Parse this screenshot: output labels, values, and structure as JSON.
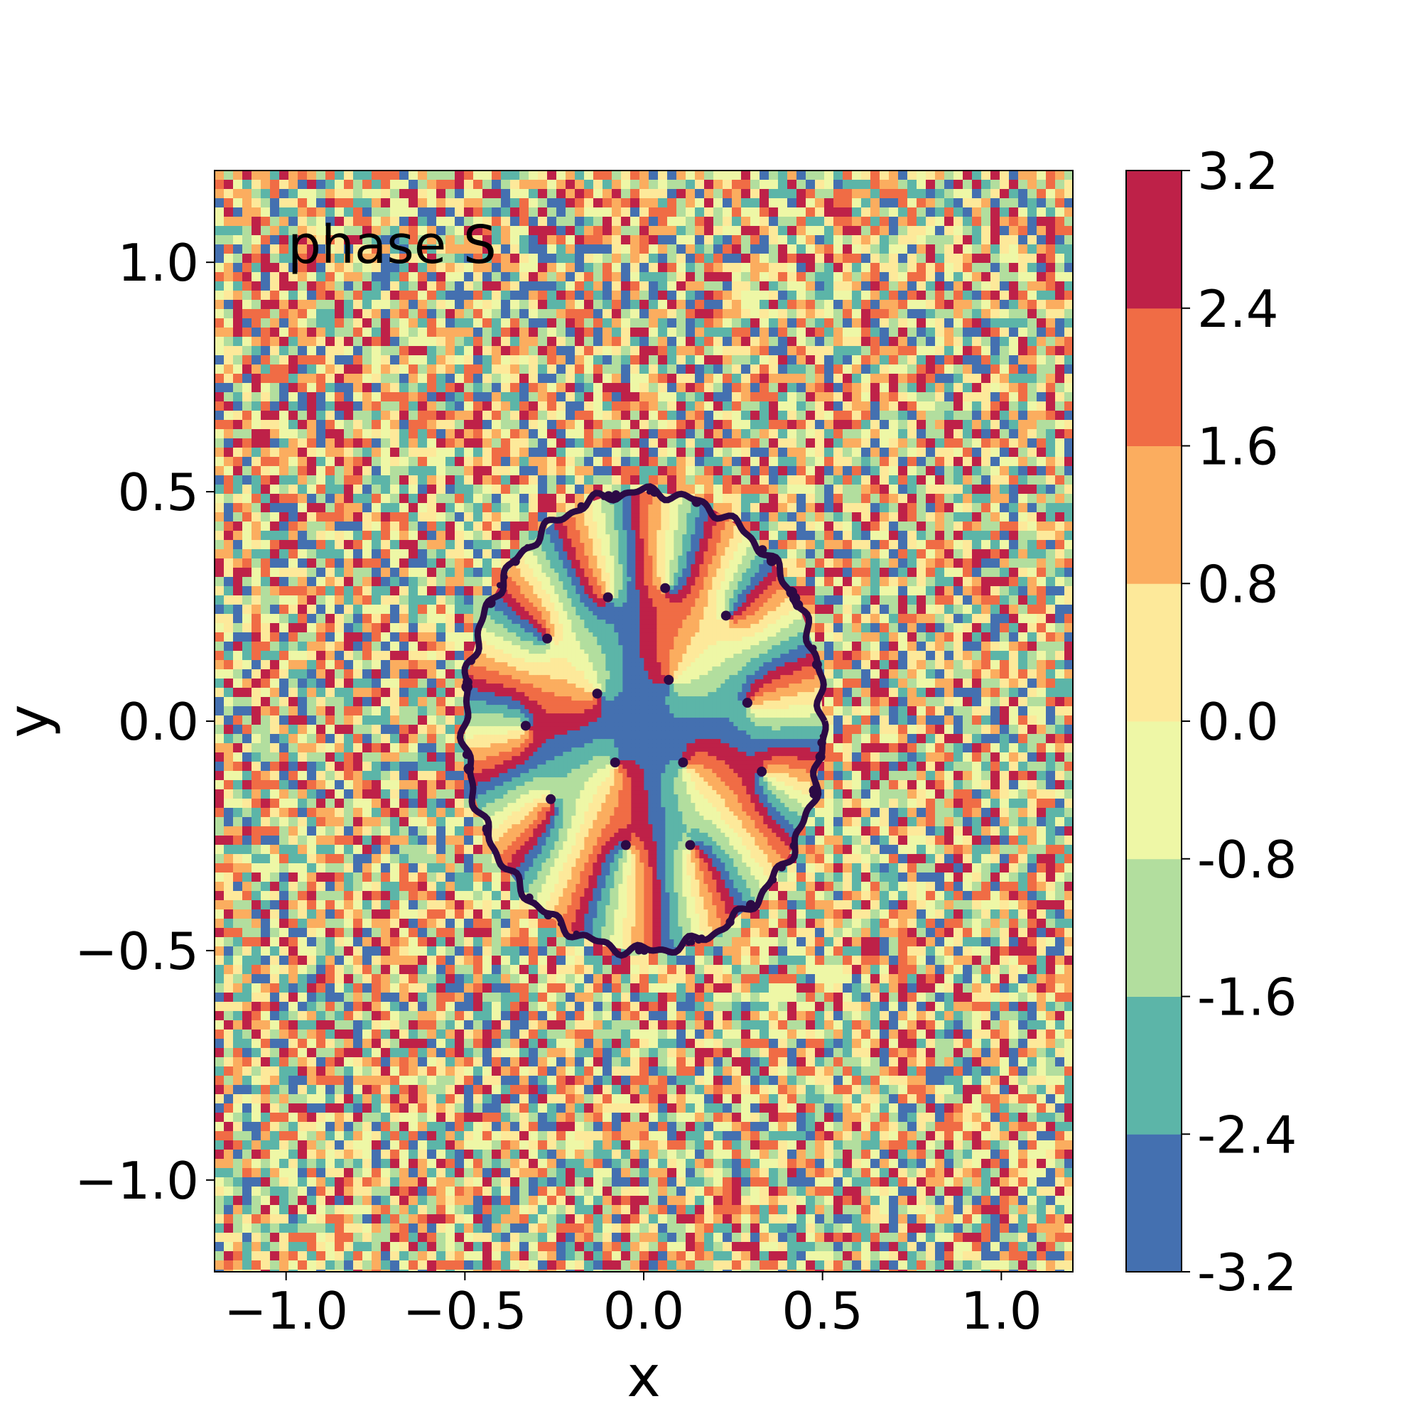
{
  "chart_data": {
    "type": "heatmap",
    "title": "",
    "annotation": "phase S",
    "xlabel": "x",
    "ylabel": "y",
    "xlim": [
      -1.2,
      1.2
    ],
    "ylim": [
      -1.2,
      1.2
    ],
    "x_ticks": [
      -1.0,
      -0.5,
      0.0,
      0.5,
      1.0
    ],
    "x_tick_labels": [
      "−1.0",
      "−0.5",
      "0.0",
      "0.5",
      "1.0"
    ],
    "y_ticks": [
      1.0,
      0.5,
      0.0,
      -0.5,
      -1.0
    ],
    "y_tick_labels": [
      "1.0",
      "0.5",
      "0.0",
      "−0.5",
      "−1.0"
    ],
    "grid": false,
    "colorbar": {
      "levels": [
        -3.2,
        -2.4,
        -1.6,
        -0.8,
        0.0,
        0.8,
        1.6,
        2.4,
        3.2
      ],
      "tick_labels": [
        "-3.2",
        "-2.4",
        "-1.6",
        "-0.8",
        "0.0",
        "0.8",
        "1.6",
        "2.4",
        "3.2"
      ],
      "colors": [
        "#4470b0",
        "#5cb5a8",
        "#b2de9e",
        "#eef7a6",
        "#fde99a",
        "#fbad5f",
        "#f06c45",
        "#be2148"
      ]
    },
    "boundary": {
      "shape": "ellipse",
      "center": [
        0.0,
        0.0
      ],
      "semi_axis_x": 0.5,
      "semi_axis_y": 0.5,
      "color": "#2c0a45"
    },
    "vortices": [
      {
        "x": 0.06,
        "y": 0.29
      },
      {
        "x": -0.1,
        "y": 0.27
      },
      {
        "x": 0.23,
        "y": 0.23
      },
      {
        "x": -0.27,
        "y": 0.18
      },
      {
        "x": 0.07,
        "y": 0.09
      },
      {
        "x": -0.13,
        "y": 0.06
      },
      {
        "x": 0.29,
        "y": 0.04
      },
      {
        "x": -0.33,
        "y": -0.01
      },
      {
        "x": -0.08,
        "y": -0.09
      },
      {
        "x": 0.11,
        "y": -0.09
      },
      {
        "x": 0.33,
        "y": -0.11
      },
      {
        "x": -0.26,
        "y": -0.17
      },
      {
        "x": -0.05,
        "y": -0.27
      },
      {
        "x": 0.13,
        "y": -0.27
      }
    ]
  }
}
